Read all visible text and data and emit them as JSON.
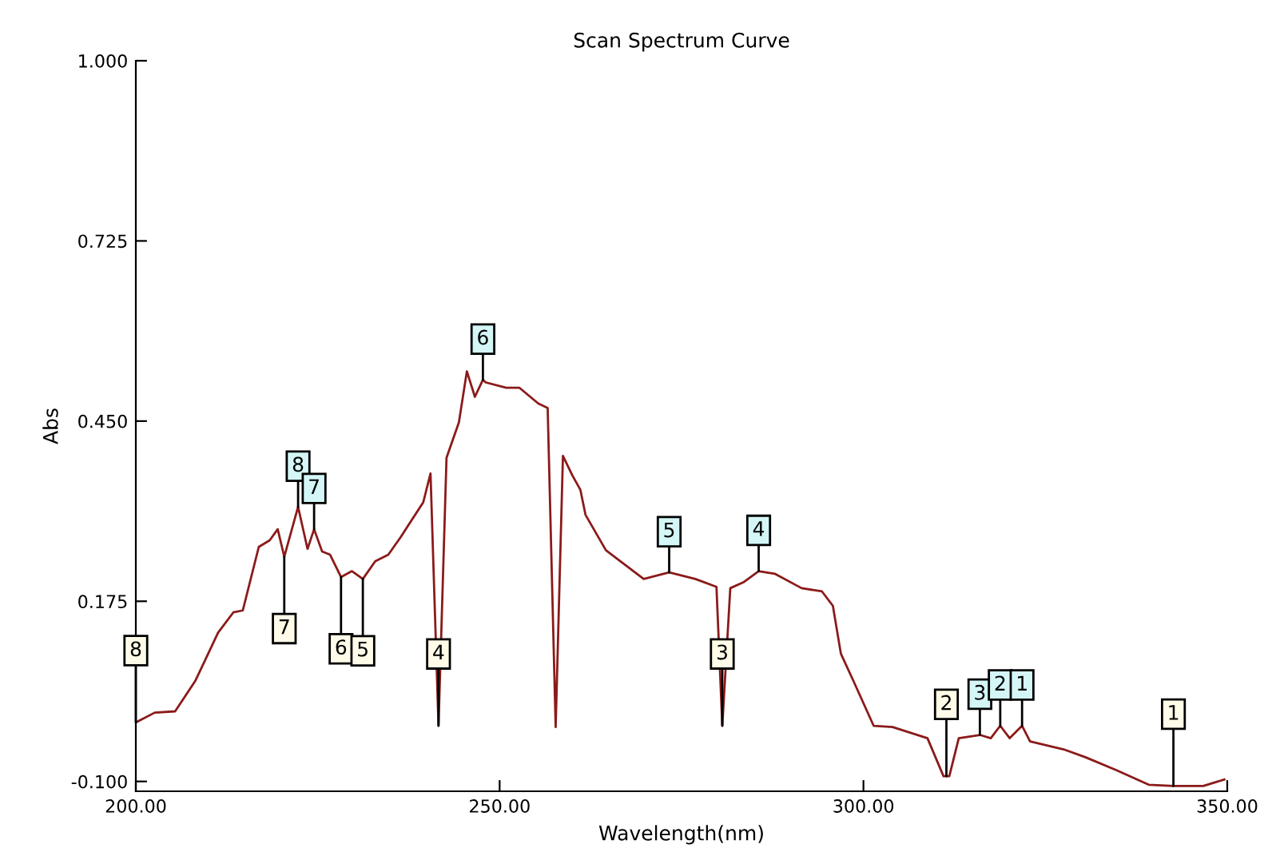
{
  "chart_data": {
    "type": "line",
    "title": "Scan Spectrum Curve",
    "xlabel": "Wavelength(nm)",
    "ylabel": "Abs",
    "xlim": [
      200,
      350
    ],
    "ylim": [
      -0.115,
      1.0
    ],
    "xticks": [
      {
        "value": 200,
        "label": "200.00"
      },
      {
        "value": 250,
        "label": "250.00"
      },
      {
        "value": 300,
        "label": "300.00"
      },
      {
        "value": 350,
        "label": "350.00"
      }
    ],
    "yticks": [
      {
        "value": -0.1,
        "label": "-0.100"
      },
      {
        "value": 0.175,
        "label": "0.175"
      },
      {
        "value": 0.45,
        "label": "0.450"
      },
      {
        "value": 0.725,
        "label": "0.725"
      },
      {
        "value": 1.0,
        "label": "1.000"
      }
    ],
    "grid": false,
    "legend": false,
    "marker": "none",
    "line_style": "solid",
    "series": [
      {
        "color": "#8b1a1a",
        "x": [
          200.0,
          202.6,
          205.4,
          208.2,
          211.3,
          213.4,
          214.7,
          216.9,
          218.4,
          219.5,
          220.4,
          222.3,
          223.6,
          224.5,
          225.6,
          226.7,
          228.2,
          229.7,
          231.2,
          232.9,
          234.7,
          236.4,
          239.5,
          240.5,
          241.6,
          242.7,
          244.4,
          245.5,
          246.6,
          247.7,
          248.1,
          250.9,
          252.7,
          255.3,
          256.6,
          257.7,
          258.7,
          260.0,
          261.1,
          261.8,
          264.6,
          269.8,
          273.3,
          276.9,
          279.8,
          280.6,
          281.7,
          283.5,
          285.6,
          287.8,
          291.5,
          294.3,
          295.8,
          296.9,
          298.6,
          301.4,
          304.0,
          308.8,
          311.0,
          311.8,
          313.1,
          316.0,
          317.5,
          318.8,
          320.1,
          321.8,
          322.9,
          327.5,
          330.5,
          334.8,
          339.2,
          342.6,
          346.7,
          349.6
        ],
        "values": [
          -0.01,
          0.005,
          0.007,
          0.054,
          0.127,
          0.158,
          0.161,
          0.258,
          0.268,
          0.285,
          0.243,
          0.319,
          0.255,
          0.285,
          0.251,
          0.246,
          0.212,
          0.221,
          0.209,
          0.236,
          0.246,
          0.273,
          0.326,
          0.37,
          -0.015,
          0.394,
          0.448,
          0.526,
          0.487,
          0.513,
          0.509,
          0.501,
          0.501,
          0.477,
          0.47,
          -0.017,
          0.397,
          0.367,
          0.345,
          0.307,
          0.253,
          0.209,
          0.219,
          0.209,
          0.197,
          -0.015,
          0.195,
          0.204,
          0.221,
          0.217,
          0.195,
          0.19,
          0.168,
          0.095,
          0.054,
          -0.015,
          -0.017,
          -0.034,
          -0.092,
          -0.092,
          -0.034,
          -0.029,
          -0.034,
          -0.015,
          -0.034,
          -0.015,
          -0.039,
          -0.051,
          -0.063,
          -0.083,
          -0.105,
          -0.107,
          -0.107,
          -0.097
        ]
      }
    ],
    "annotations": [
      {
        "text": "8",
        "x": 222.3,
        "y": 0.319
      },
      {
        "text": "7",
        "x": 224.5,
        "y": 0.285
      },
      {
        "text": "6",
        "x": 247.7,
        "y": 0.513
      },
      {
        "text": "5",
        "x": 273.3,
        "y": 0.219
      },
      {
        "text": "4",
        "x": 285.6,
        "y": 0.221
      },
      {
        "text": "3",
        "x": 316.0,
        "y": -0.029
      },
      {
        "text": "2",
        "x": 318.8,
        "y": -0.015
      },
      {
        "text": "1",
        "x": 321.8,
        "y": -0.015
      },
      {
        "text": "8",
        "x": 200.0,
        "y": -0.01
      },
      {
        "text": "7",
        "x": 220.4,
        "y": 0.243
      },
      {
        "text": "6",
        "x": 228.2,
        "y": 0.212
      },
      {
        "text": "5",
        "x": 231.2,
        "y": 0.209
      },
      {
        "text": "4",
        "x": 241.6,
        "y": -0.015
      },
      {
        "text": "3",
        "x": 280.6,
        "y": -0.015
      },
      {
        "text": "2",
        "x": 311.4,
        "y": -0.092
      },
      {
        "text": "1",
        "x": 342.6,
        "y": -0.107
      }
    ]
  }
}
